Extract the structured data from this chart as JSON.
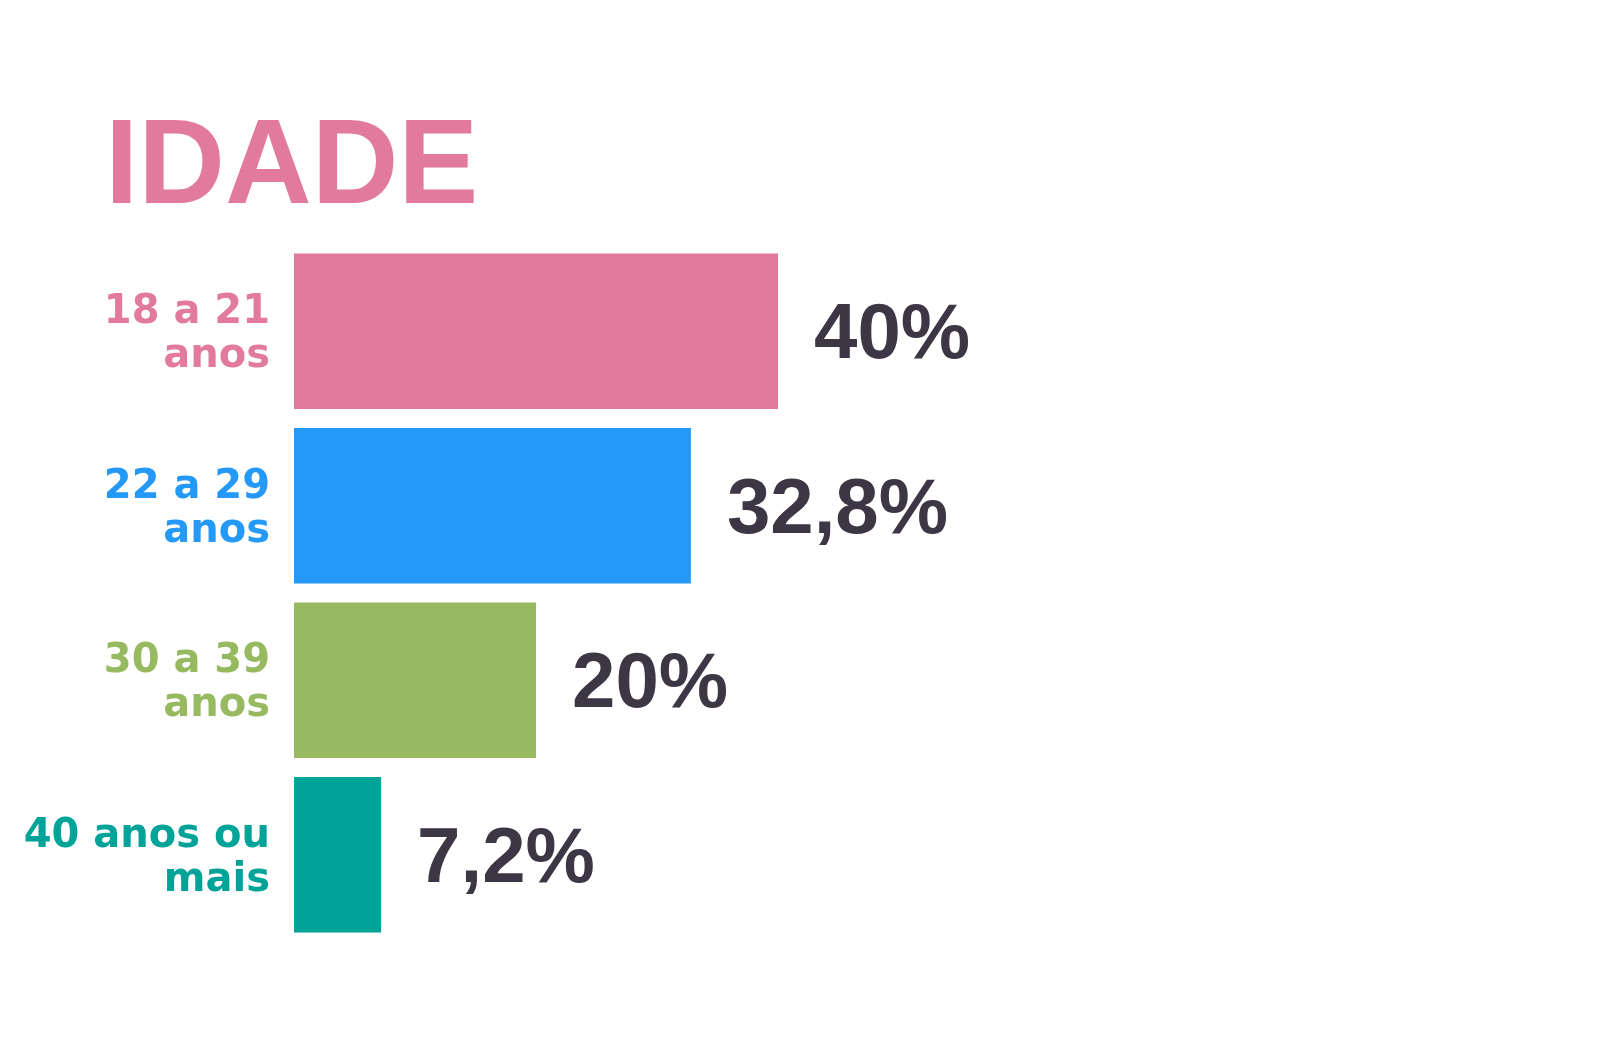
{
  "chart_data": {
    "type": "bar",
    "orientation": "horizontal",
    "title": "IDADE",
    "categories": [
      "18 a 21 anos",
      "22 a 29 anos",
      "30 a 39 anos",
      "40 anos ou mais"
    ],
    "values": [
      40,
      32.8,
      20,
      7.2
    ],
    "colors": [
      "#e17a9c",
      "#2499f7",
      "#97b95f",
      "#00a398"
    ],
    "data_labels": true,
    "value_labels": [
      "40%",
      "32,8%",
      "20%",
      "7,2%"
    ]
  }
}
